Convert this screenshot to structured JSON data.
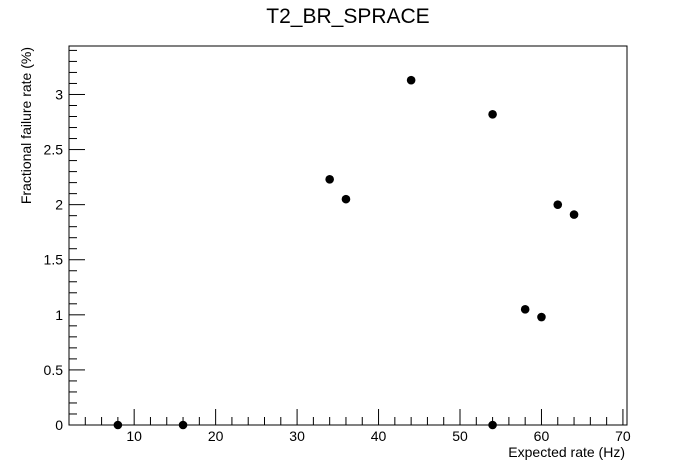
{
  "chart_data": {
    "type": "scatter",
    "title": "T2_BR_SPRACE",
    "xlabel": "Expected rate (Hz)",
    "ylabel": "Fractional failure rate (%)",
    "xlim": [
      2,
      70.5
    ],
    "ylim": [
      0,
      3.44
    ],
    "xticks": [
      10,
      20,
      30,
      40,
      50,
      60,
      70
    ],
    "yticks": [
      0,
      0.5,
      1,
      1.5,
      2,
      2.5,
      3
    ],
    "xtick_labels": [
      "10",
      "20",
      "30",
      "40",
      "50",
      "60",
      "70"
    ],
    "ytick_labels": [
      "0",
      "0.5",
      "1",
      "1.5",
      "2",
      "2.5",
      "3"
    ],
    "grid": false,
    "points": [
      {
        "x": 8,
        "y": 0
      },
      {
        "x": 16,
        "y": 0
      },
      {
        "x": 34,
        "y": 2.23
      },
      {
        "x": 36,
        "y": 2.05
      },
      {
        "x": 44,
        "y": 3.13
      },
      {
        "x": 54,
        "y": 2.82
      },
      {
        "x": 54,
        "y": 0
      },
      {
        "x": 58,
        "y": 1.05
      },
      {
        "x": 60,
        "y": 0.98
      },
      {
        "x": 62,
        "y": 2.0
      },
      {
        "x": 64,
        "y": 1.91
      }
    ]
  }
}
